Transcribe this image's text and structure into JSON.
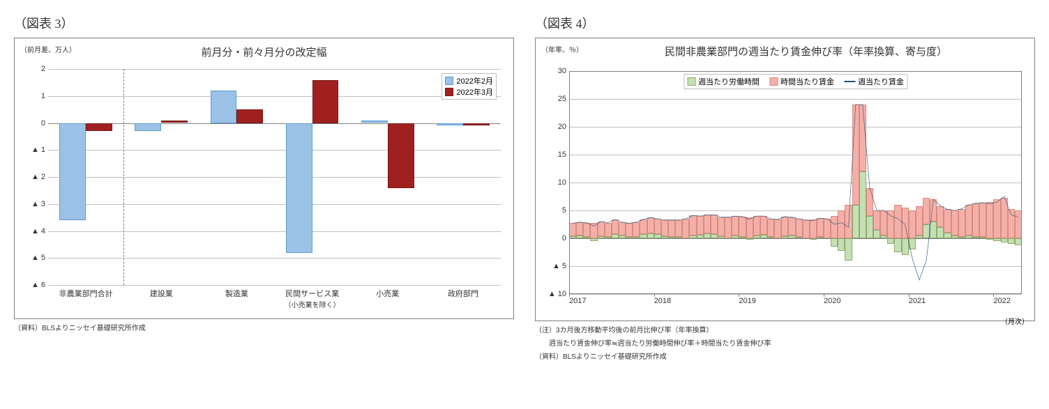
{
  "chart3": {
    "fig_label": "（図表 3）",
    "axis_label": "（前月差、万人）",
    "title": "前月分・前々月分の改定幅",
    "type": "grouped-bar",
    "ylim": [
      -6,
      2
    ],
    "ytick_step": 1,
    "yticks": [
      "2",
      "1",
      "0",
      "▲ 1",
      "▲ 2",
      "▲ 3",
      "▲ 4",
      "▲ 5",
      "▲ 6"
    ],
    "categories": [
      "非農業部門合計",
      "建設業",
      "製造業",
      "民間サービス業",
      "小売業",
      "政府部門"
    ],
    "category_sub": [
      "",
      "",
      "",
      "（小売業を除く）",
      "",
      ""
    ],
    "series": [
      {
        "name": "2022年2月",
        "color": "#9bc2e6",
        "border": "#5b9bd5",
        "values": [
          -3.6,
          -0.3,
          1.2,
          -4.8,
          0.1,
          -0.1
        ]
      },
      {
        "name": "2022年3月",
        "color": "#a02020",
        "border": "#7a1818",
        "values": [
          -0.3,
          0.1,
          0.5,
          1.6,
          -2.4,
          -0.1
        ]
      }
    ],
    "vline_after_index": 0,
    "background_color": "#ffffff",
    "grid_color": "#bfbfbf",
    "bar_width": 0.35,
    "footnote": "（資料）BLSよりニッセイ基礎研究所作成"
  },
  "chart4": {
    "fig_label": "（図表 4）",
    "axis_label": "（年率、％）",
    "title": "民間非農業部門の週当たり賃金伸び率（年率換算、寄与度）",
    "type": "stacked-bar-with-line",
    "ylim": [
      -10,
      30
    ],
    "ytick_step": 5,
    "yticks": [
      "30",
      "25",
      "20",
      "15",
      "10",
      "5",
      "0",
      "▲ 5",
      "▲ 10"
    ],
    "x_years": [
      "2017",
      "2018",
      "2019",
      "2020",
      "2021",
      "2022"
    ],
    "x_label_right": "（月次）",
    "series": [
      {
        "name": "週当たり労働時間",
        "type": "bar",
        "color": "#c5e0b4",
        "border": "#8faa6f"
      },
      {
        "name": "時間当たり賃金",
        "type": "bar",
        "color": "#f4b0a8",
        "border": "#d88a80"
      },
      {
        "name": "週当たり賃金",
        "type": "line",
        "color": "#1f4e79"
      }
    ],
    "hours_values": [
      0.4,
      0.5,
      0.3,
      -0.5,
      0.4,
      0.3,
      0.8,
      0.5,
      0.2,
      0.3,
      0.7,
      0.9,
      0.8,
      0.4,
      0.3,
      0.2,
      0.0,
      0.5,
      0.6,
      0.9,
      0.7,
      0.4,
      0.0,
      0.5,
      0.3,
      -0.3,
      0.5,
      0.6,
      0.2,
      0.0,
      0.4,
      0.5,
      0.3,
      0.0,
      -0.2,
      0.3,
      0.0,
      -1.5,
      -2.2,
      -4.0,
      6.0,
      12.0,
      4.0,
      1.5,
      0.5,
      -1.0,
      -2.5,
      -3.0,
      -2.0,
      0.5,
      2.5,
      3.0,
      2.0,
      1.0,
      0.5,
      0.3,
      0.5,
      0.3,
      0.2,
      -0.3,
      -0.5,
      -0.7,
      -1.0,
      -1.2
    ],
    "wage_values": [
      2.3,
      2.4,
      2.5,
      2.7,
      2.6,
      2.5,
      2.6,
      2.4,
      2.5,
      2.6,
      2.7,
      2.8,
      2.7,
      2.9,
      3.0,
      3.1,
      3.5,
      3.6,
      3.4,
      3.3,
      3.5,
      3.4,
      3.8,
      3.5,
      3.6,
      3.7,
      3.5,
      3.4,
      3.3,
      3.4,
      3.5,
      3.3,
      3.2,
      3.3,
      3.4,
      3.3,
      3.5,
      4.0,
      5.0,
      6.0,
      18.0,
      12.0,
      5.0,
      3.5,
      4.5,
      5.0,
      6.0,
      5.5,
      5.0,
      5.2,
      4.8,
      4.0,
      3.8,
      4.2,
      4.5,
      5.0,
      5.5,
      6.0,
      6.2,
      6.5,
      7.0,
      7.2,
      5.2,
      5.0
    ],
    "line_values": [
      2.7,
      2.9,
      2.8,
      2.2,
      3.0,
      2.8,
      3.4,
      2.9,
      2.7,
      2.9,
      3.4,
      3.7,
      3.5,
      3.3,
      3.3,
      3.3,
      3.5,
      4.1,
      4.0,
      4.2,
      4.2,
      3.8,
      3.8,
      4.0,
      3.9,
      3.4,
      4.0,
      4.0,
      3.5,
      3.4,
      3.9,
      3.8,
      3.5,
      3.3,
      3.2,
      3.6,
      3.5,
      2.5,
      2.8,
      2.0,
      24.0,
      24.0,
      9.0,
      5.0,
      5.0,
      4.0,
      3.5,
      2.5,
      -3.5,
      -7.5,
      -4.0,
      7.0,
      5.8,
      5.2,
      5.0,
      5.3,
      6.0,
      6.3,
      6.4,
      6.2,
      6.5,
      7.5,
      4.2,
      3.8
    ],
    "background_color": "#ffffff",
    "grid_color": "#bfbfbf",
    "footnotes": [
      "（注）3カ月後方移動平均後の前月比伸び率（年率換算）",
      "　　週当たり賃金伸び率≒週当たり労働時間伸び率＋時間当たり賃金伸び率",
      "（資料）BLSよりニッセイ基礎研究所作成"
    ]
  }
}
